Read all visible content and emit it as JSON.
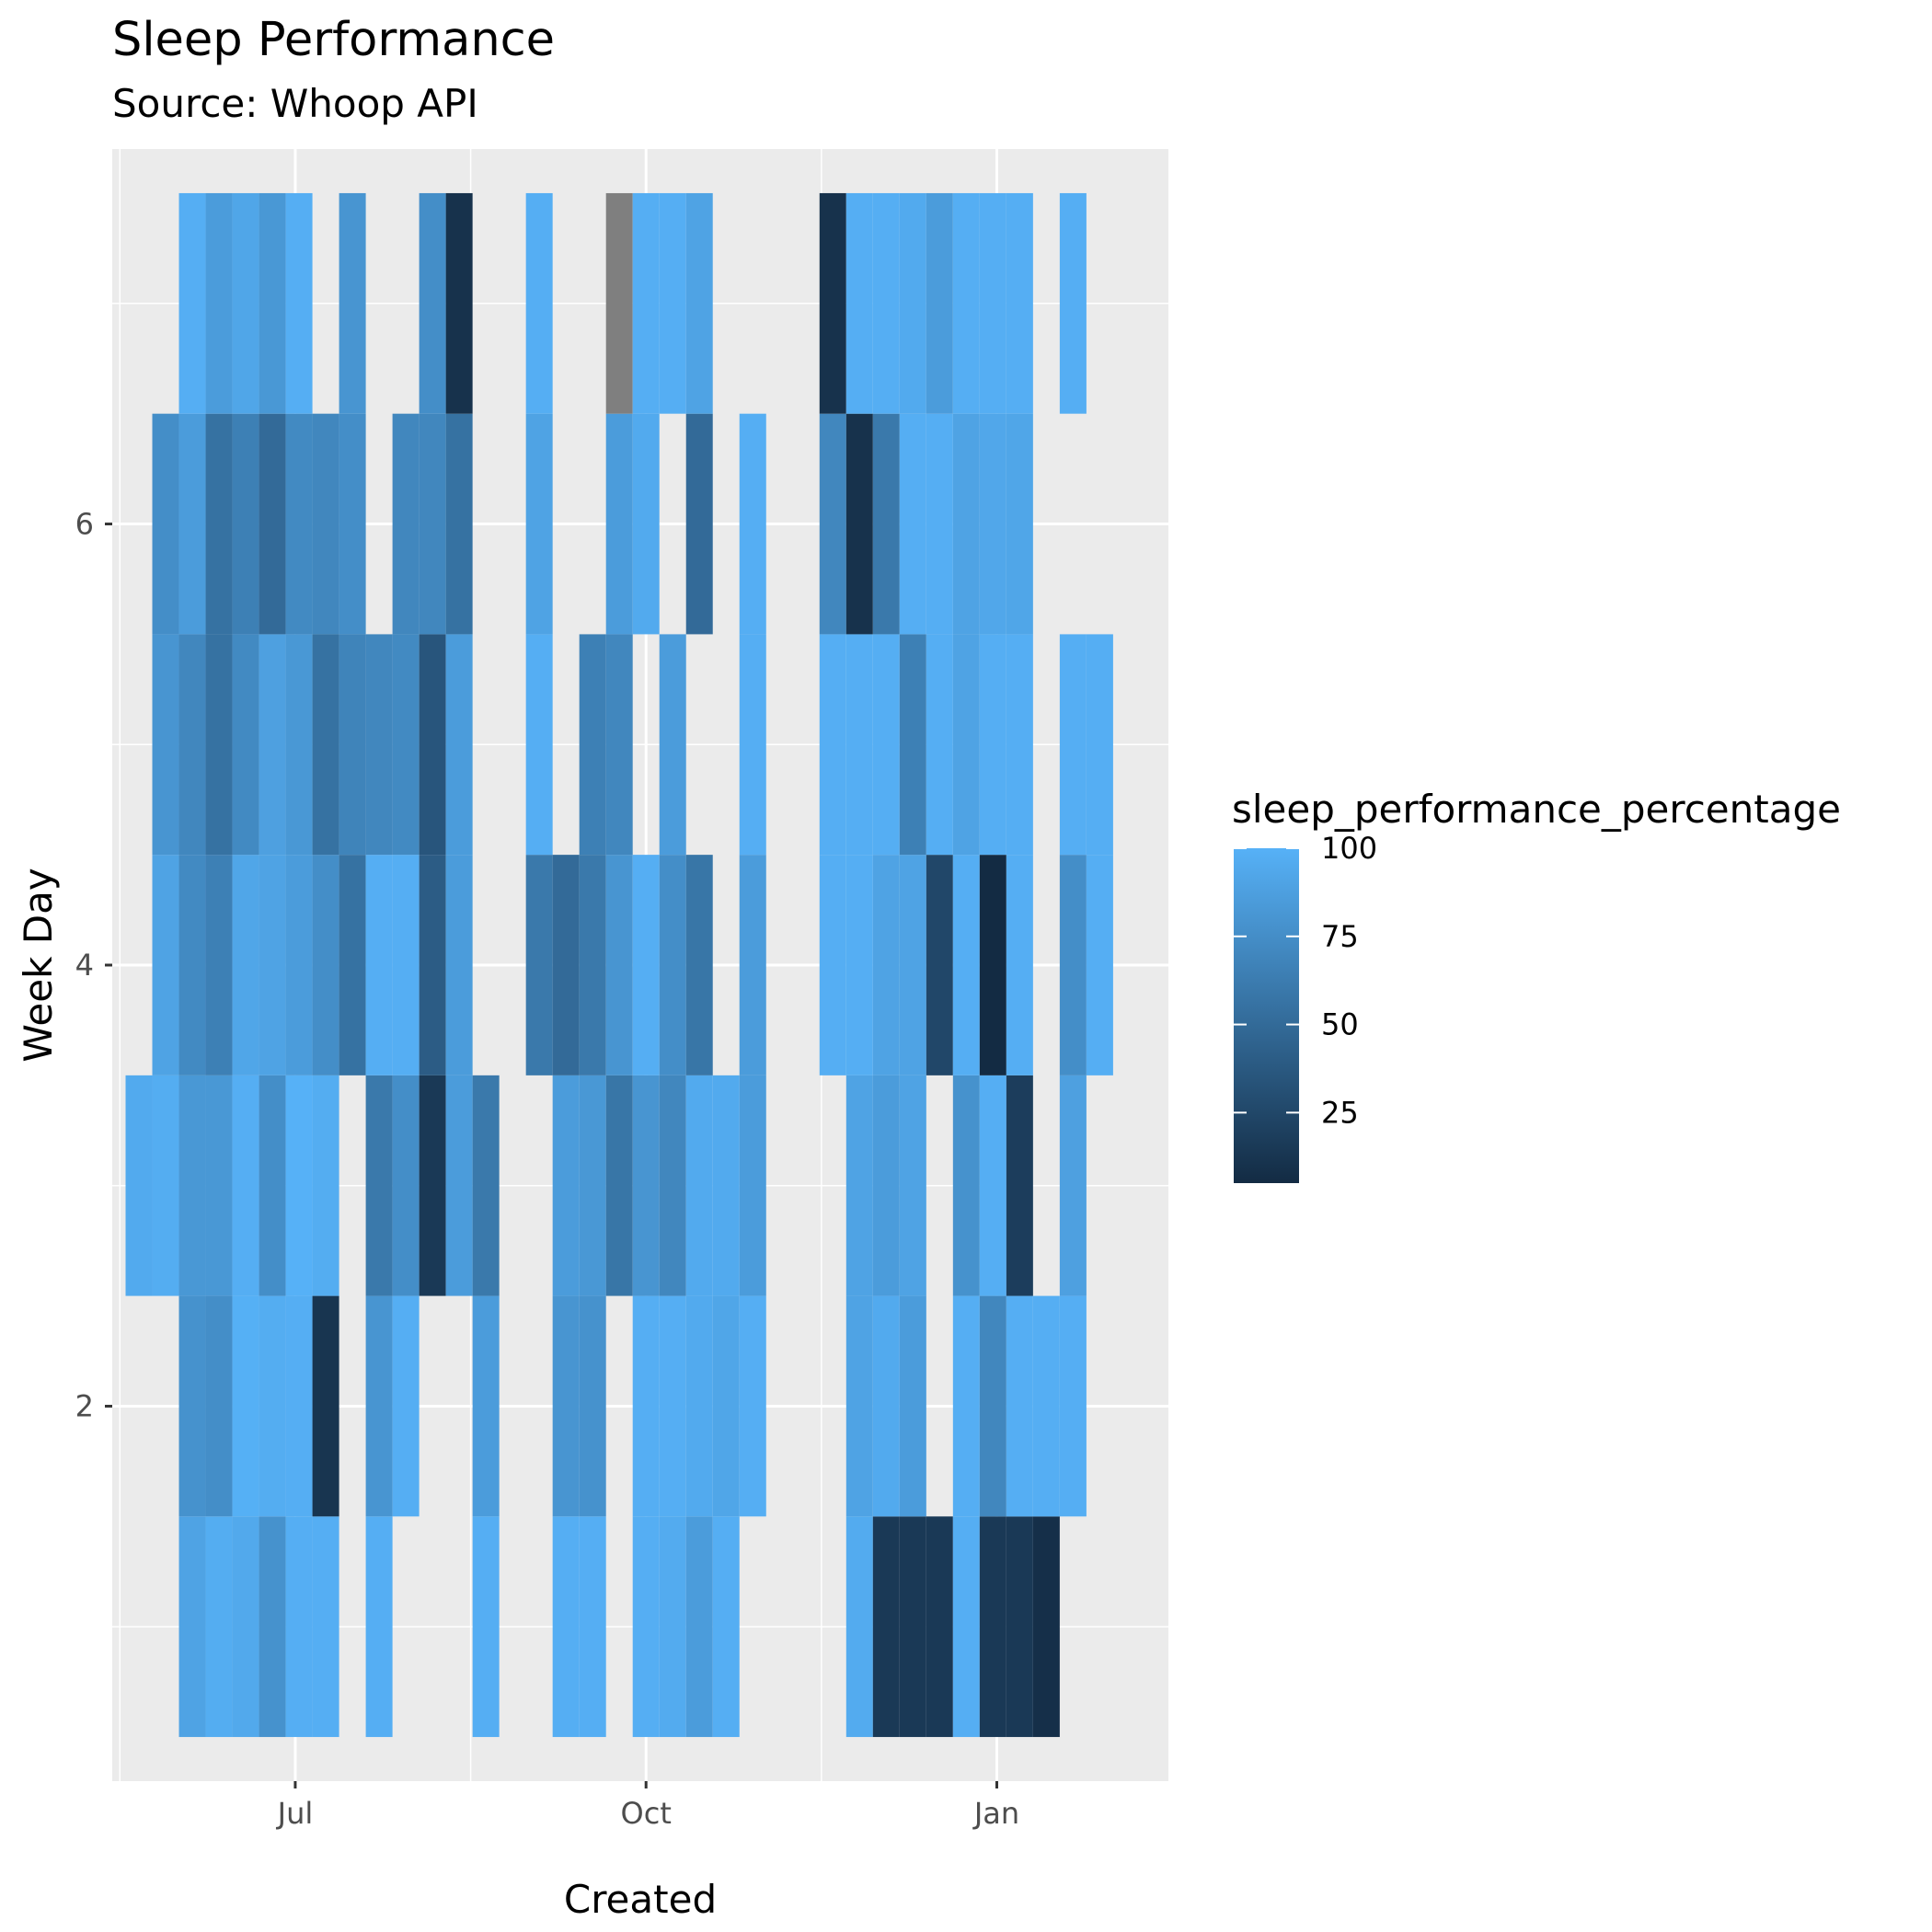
{
  "chart_data": {
    "type": "heatmap",
    "title": "Sleep Performance",
    "subtitle": "Source: Whoop API",
    "xlabel": "Created",
    "ylabel": "Week Day",
    "x_ticks": [
      {
        "label": "Jul",
        "date": "2023-07-01"
      },
      {
        "label": "Oct",
        "date": "2023-10-01"
      },
      {
        "label": "Jan",
        "date": "2024-01-01"
      }
    ],
    "x_range": [
      "2023-05-14",
      "2024-02-15"
    ],
    "y_ticks": [
      2,
      4,
      6
    ],
    "ylim": [
      0.3,
      7.7
    ],
    "grid": true,
    "legend": {
      "title": "sleep_performance_percentage",
      "position": "right",
      "breaks": [
        25,
        50,
        75,
        100
      ],
      "range": [
        5,
        100
      ],
      "low_color": "#132B43",
      "high_color": "#56B1F7",
      "na_color": "#7F7F7F"
    },
    "columns": [
      {
        "week": "2023-05-21",
        "values": {
          "3": 95
        }
      },
      {
        "week": "2023-05-28",
        "values": {
          "3": 97,
          "4": 90,
          "5": 80,
          "6": 75
        }
      },
      {
        "week": "2023-06-04",
        "values": {
          "1": 90,
          "2": 78,
          "3": 82,
          "4": 72,
          "5": 70,
          "6": 85,
          "7": 98
        }
      },
      {
        "week": "2023-06-11",
        "values": {
          "1": 97,
          "2": 75,
          "3": 82,
          "4": 65,
          "5": 55,
          "6": 55,
          "7": 85
        }
      },
      {
        "week": "2023-06-18",
        "values": {
          "1": 94,
          "2": 99,
          "3": 98,
          "4": 92,
          "5": 72,
          "6": 65,
          "7": 92
        }
      },
      {
        "week": "2023-06-25",
        "values": {
          "1": 78,
          "2": 97,
          "3": 75,
          "4": 90,
          "5": 88,
          "6": 50,
          "7": 82
        }
      },
      {
        "week": "2023-07-02",
        "values": {
          "1": 98,
          "2": 98,
          "3": 100,
          "4": 85,
          "5": 82,
          "6": 72,
          "7": 98
        }
      },
      {
        "week": "2023-07-09",
        "values": {
          "1": 98,
          "2": 12,
          "3": 97,
          "4": 75,
          "5": 55,
          "6": 70
        }
      },
      {
        "week": "2023-07-16",
        "values": {
          "4": 55,
          "5": 68,
          "6": 75,
          "7": 80
        }
      },
      {
        "week": "2023-07-23",
        "values": {
          "1": 98,
          "2": 80,
          "3": 60,
          "4": 98,
          "5": 70
        }
      },
      {
        "week": "2023-07-30",
        "values": {
          "2": 98,
          "3": 75,
          "4": 98,
          "5": 72,
          "6": 70
        }
      },
      {
        "week": "2023-08-06",
        "values": {
          "3": 15,
          "4": 40,
          "5": 35,
          "6": 70,
          "7": 75
        }
      },
      {
        "week": "2023-08-13",
        "values": {
          "3": 85,
          "4": 85,
          "5": 85,
          "6": 55,
          "7": 10
        }
      },
      {
        "week": "2023-08-20",
        "values": {
          "1": 98,
          "2": 85,
          "3": 60
        }
      },
      {
        "week": "2023-09-03",
        "values": {
          "4": 60,
          "5": 98,
          "6": 90,
          "7": 98
        }
      },
      {
        "week": "2023-09-10",
        "values": {
          "1": 98,
          "2": 80,
          "3": 85,
          "4": 50
        }
      },
      {
        "week": "2023-09-17",
        "values": {
          "1": 98,
          "2": 78,
          "3": 82,
          "4": 60,
          "5": 65
        }
      },
      {
        "week": "2023-09-24",
        "values": {
          "3": 58,
          "4": 80,
          "5": 70,
          "6": 85,
          "7": null
        }
      },
      {
        "week": "2023-10-01",
        "values": {
          "1": 98,
          "2": 98,
          "3": 80,
          "4": 98,
          "6": 95,
          "7": 98
        }
      },
      {
        "week": "2023-10-08",
        "values": {
          "1": 96,
          "2": 98,
          "3": 70,
          "4": 75,
          "5": 85,
          "7": 98
        }
      },
      {
        "week": "2023-10-15",
        "values": {
          "1": 85,
          "2": 95,
          "3": 95,
          "4": 58,
          "6": 50,
          "7": 90
        }
      },
      {
        "week": "2023-10-22",
        "values": {
          "1": 98,
          "2": 92,
          "3": 95
        }
      },
      {
        "week": "2023-10-29",
        "values": {
          "2": 98,
          "3": 85,
          "4": 85,
          "5": 98,
          "6": 98
        }
      },
      {
        "week": "2023-11-19",
        "values": {
          "4": 98,
          "5": 98,
          "6": 70,
          "7": 10
        }
      },
      {
        "week": "2023-11-26",
        "values": {
          "1": 96,
          "2": 90,
          "3": 90,
          "4": 98,
          "5": 98,
          "6": 10,
          "7": 98
        }
      },
      {
        "week": "2023-12-03",
        "values": {
          "1": 15,
          "2": 95,
          "3": 85,
          "4": 90,
          "5": 98,
          "6": 60,
          "7": 98
        }
      },
      {
        "week": "2023-12-10",
        "values": {
          "1": 15,
          "2": 85,
          "3": 90,
          "4": 90,
          "5": 65,
          "6": 98,
          "7": 95
        }
      },
      {
        "week": "2023-12-17",
        "values": {
          "1": 15,
          "4": 25,
          "5": 98,
          "6": 98,
          "7": 85
        }
      },
      {
        "week": "2023-12-24",
        "values": {
          "1": 98,
          "2": 98,
          "3": 78,
          "4": 98,
          "5": 90,
          "6": 90,
          "7": 98
        }
      },
      {
        "week": "2023-12-31",
        "values": {
          "1": 15,
          "2": 70,
          "3": 98,
          "4": 5,
          "5": 98,
          "6": 93,
          "7": 98
        }
      },
      {
        "week": "2024-01-07",
        "values": {
          "1": 15,
          "2": 98,
          "3": 18,
          "4": 98,
          "5": 98,
          "6": 92,
          "7": 98
        }
      },
      {
        "week": "2024-01-14",
        "values": {
          "1": 8,
          "2": 98
        }
      },
      {
        "week": "2024-01-21",
        "values": {
          "2": 98,
          "3": 88,
          "4": 75,
          "5": 98,
          "7": 98
        }
      },
      {
        "week": "2024-01-28",
        "values": {
          "4": 98,
          "5": 98
        }
      }
    ]
  }
}
